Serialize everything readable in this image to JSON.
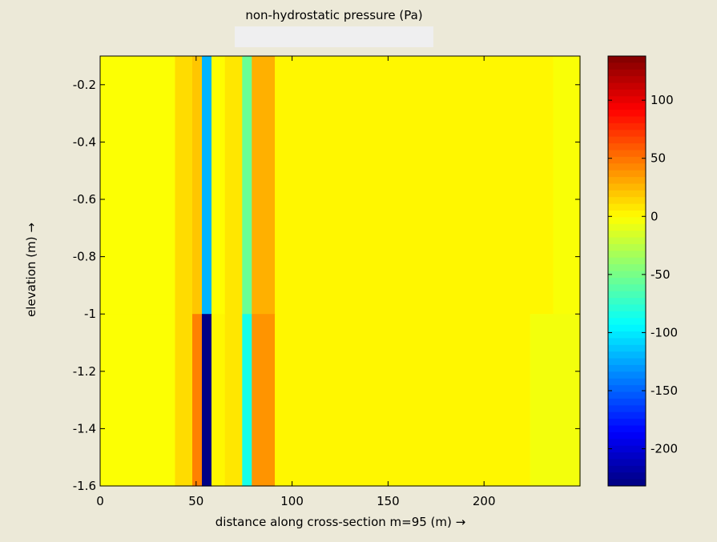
{
  "chart_data": {
    "type": "heatmap",
    "title": "non-hydrostatic pressure (Pa)",
    "xlabel": "distance along cross-section m=95 (m) →",
    "ylabel": "elevation (m) →",
    "xlim": [
      0,
      250
    ],
    "ylim": [
      -1.6,
      -0.1
    ],
    "x_ticks": [
      0,
      50,
      100,
      150,
      200
    ],
    "y_ticks": [
      -0.2,
      -0.4,
      -0.6,
      -0.8,
      -1,
      -1.2,
      -1.4,
      -1.6
    ],
    "x_edges": [
      0,
      39,
      48,
      53,
      58,
      65,
      74,
      79,
      91,
      224,
      236,
      250
    ],
    "y_edges": [
      -0.1,
      -1.0,
      -1.6
    ],
    "values": [
      [
        -2,
        12,
        20,
        -120,
        0,
        8,
        -55,
        28,
        2,
        2,
        -3
      ],
      [
        -2,
        12,
        45,
        -230,
        2,
        8,
        -85,
        38,
        2,
        -5,
        -5
      ]
    ],
    "colorbar": {
      "colormap": "jet",
      "clim": [
        -232,
        138
      ],
      "ticks": [
        100,
        50,
        0,
        -50,
        -100,
        -150,
        -200
      ]
    },
    "grid": false
  }
}
